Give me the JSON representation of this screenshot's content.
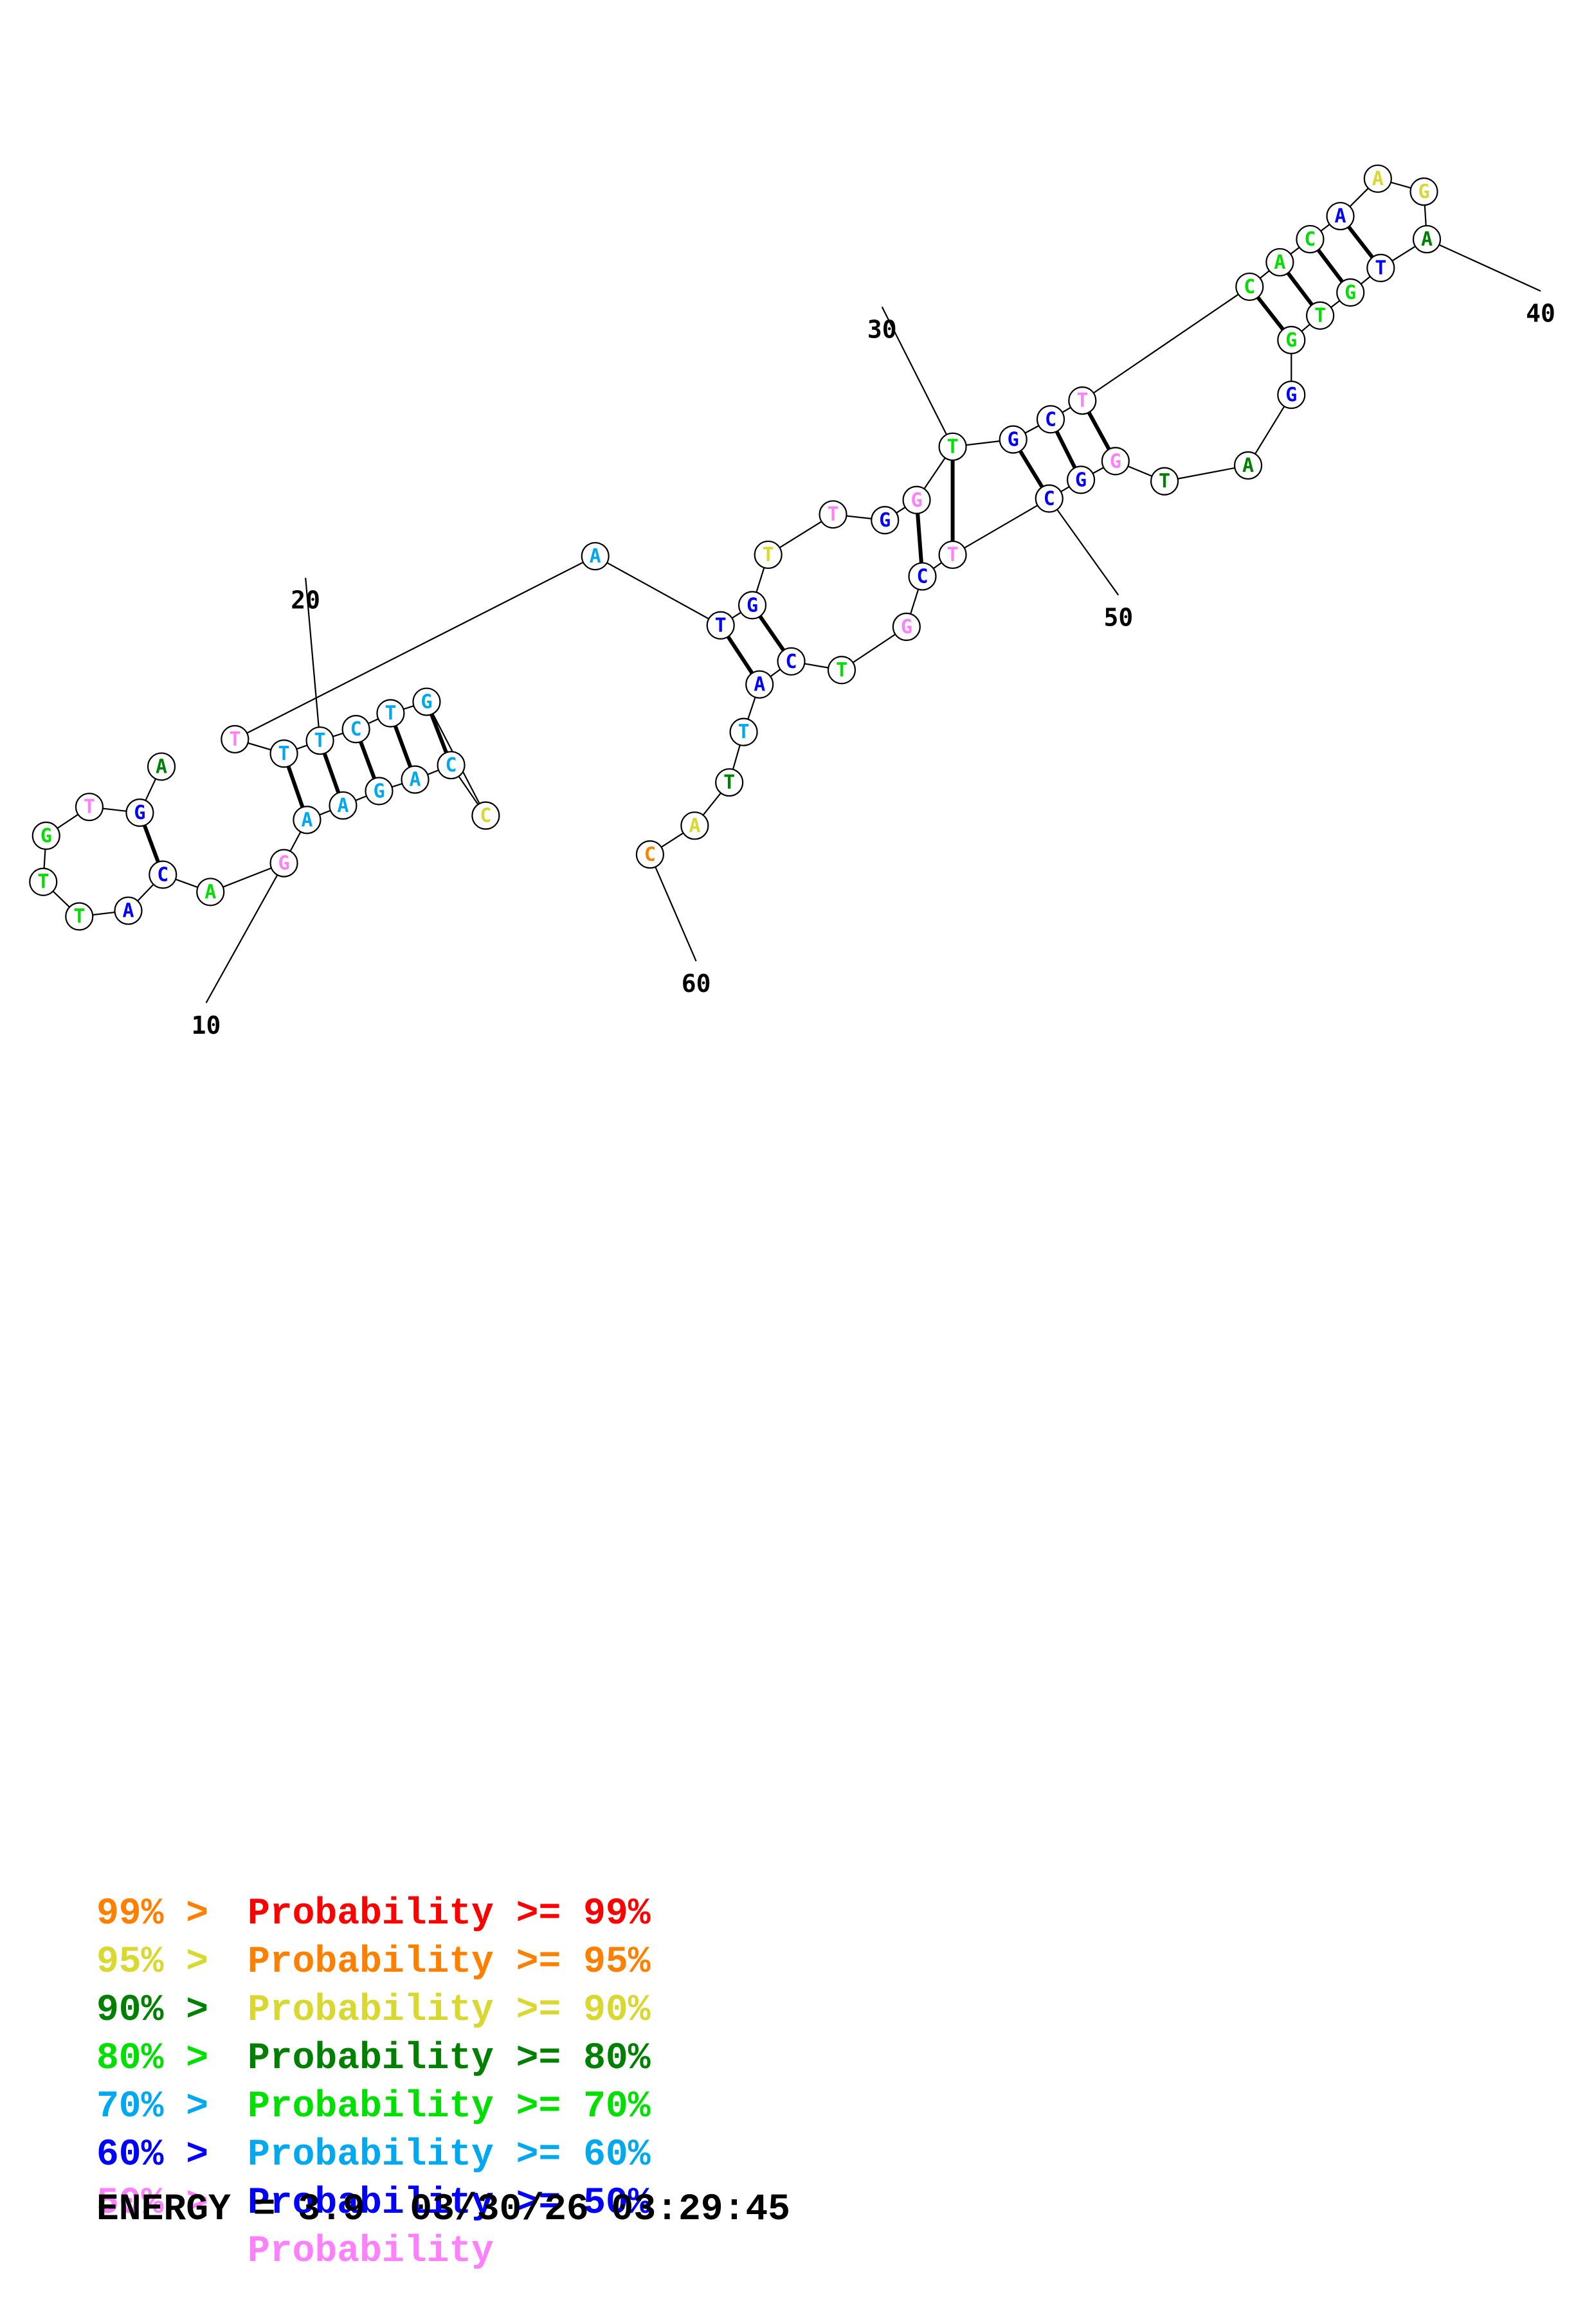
{
  "colors": {
    "p99": "#ff0000",
    "p95": "#ff8000",
    "p90": "#d8d830",
    "p80": "#008000",
    "p70": "#00e000",
    "p60": "#00a8f0",
    "p50": "#0000ff",
    "plt50": "#ff80ff"
  },
  "diagram": {
    "nucleotides": [
      {
        "base": "A",
        "color": "#008000"
      },
      {
        "base": "G",
        "color": "#0000ff"
      },
      {
        "base": "T",
        "color": "#ff80ff"
      },
      {
        "base": "G",
        "color": "#00e000"
      },
      {
        "base": "T",
        "color": "#00e000"
      },
      {
        "base": "T",
        "color": "#00e000"
      },
      {
        "base": "A",
        "color": "#0000ff"
      },
      {
        "base": "C",
        "color": "#0000ff"
      },
      {
        "base": "A",
        "color": "#00e000"
      },
      {
        "base": "G",
        "color": "#ff80ff"
      },
      {
        "base": "A",
        "color": "#00a8f0"
      },
      {
        "base": "A",
        "color": "#00a8f0"
      },
      {
        "base": "G",
        "color": "#00a8f0"
      },
      {
        "base": "A",
        "color": "#00a8f0"
      },
      {
        "base": "C",
        "color": "#00a8f0"
      },
      {
        "base": "C",
        "color": "#d8d830"
      },
      {
        "base": "G",
        "color": "#00a8f0"
      },
      {
        "base": "T",
        "color": "#00a8f0"
      },
      {
        "base": "C",
        "color": "#00a8f0"
      },
      {
        "base": "T",
        "color": "#00a8f0"
      },
      {
        "base": "T",
        "color": "#00a8f0"
      },
      {
        "base": "T",
        "color": "#ff80ff"
      },
      {
        "base": "A",
        "color": "#00a8f0"
      },
      {
        "base": "T",
        "color": "#0000ff"
      },
      {
        "base": "G",
        "color": "#0000ff"
      },
      {
        "base": "T",
        "color": "#d8d830"
      },
      {
        "base": "T",
        "color": "#ff80ff"
      },
      {
        "base": "G",
        "color": "#0000ff"
      },
      {
        "base": "G",
        "color": "#ff80ff"
      },
      {
        "base": "T",
        "color": "#00e000"
      },
      {
        "base": "G",
        "color": "#0000ff"
      },
      {
        "base": "C",
        "color": "#0000ff"
      },
      {
        "base": "T",
        "color": "#ff80ff"
      },
      {
        "base": "C",
        "color": "#00e000"
      },
      {
        "base": "A",
        "color": "#00e000"
      },
      {
        "base": "C",
        "color": "#00e000"
      },
      {
        "base": "A",
        "color": "#0000ff"
      },
      {
        "base": "A",
        "color": "#d8d830"
      },
      {
        "base": "G",
        "color": "#d8d830"
      },
      {
        "base": "A",
        "color": "#008000"
      },
      {
        "base": "T",
        "color": "#0000ff"
      },
      {
        "base": "G",
        "color": "#00e000"
      },
      {
        "base": "T",
        "color": "#00e000"
      },
      {
        "base": "G",
        "color": "#00e000"
      },
      {
        "base": "G",
        "color": "#0000ff"
      },
      {
        "base": "A",
        "color": "#008000"
      },
      {
        "base": "T",
        "color": "#008000"
      },
      {
        "base": "G",
        "color": "#ff80ff"
      },
      {
        "base": "G",
        "color": "#0000ff"
      },
      {
        "base": "C",
        "color": "#0000ff"
      },
      {
        "base": "T",
        "color": "#ff80ff"
      },
      {
        "base": "C",
        "color": "#0000ff"
      },
      {
        "base": "G",
        "color": "#ff80ff"
      },
      {
        "base": "T",
        "color": "#00e000"
      },
      {
        "base": "C",
        "color": "#0000ff"
      },
      {
        "base": "A",
        "color": "#0000ff"
      },
      {
        "base": "T",
        "color": "#00a8f0"
      },
      {
        "base": "T",
        "color": "#008000"
      },
      {
        "base": "A",
        "color": "#d8d830"
      },
      {
        "base": "C",
        "color": "#ff8000"
      }
    ],
    "position_labels": [
      "10",
      "20",
      "30",
      "40",
      "50",
      "60"
    ]
  },
  "legend": [
    {
      "range": "",
      "label": "Probability >= 99%",
      "color": "#ff0000"
    },
    {
      "range": "99% >",
      "label": "Probability >= 95%",
      "color": "#ff8000"
    },
    {
      "range": "95% >",
      "label": "Probability >= 90%",
      "color": "#d8d830"
    },
    {
      "range": "90% >",
      "label": "Probability >= 80%",
      "color": "#008000"
    },
    {
      "range": "80% >",
      "label": "Probability >= 70%",
      "color": "#00e000"
    },
    {
      "range": "70% >",
      "label": "Probability >= 60%",
      "color": "#00a8f0"
    },
    {
      "range": "60% >",
      "label": "Probability >= 50%",
      "color": "#0000ff"
    },
    {
      "range": "50% >",
      "label": "Probability",
      "color": "#ff80ff"
    }
  ],
  "energy": {
    "text": "ENERGY = 3.9  03/30/26 03:29:45"
  }
}
